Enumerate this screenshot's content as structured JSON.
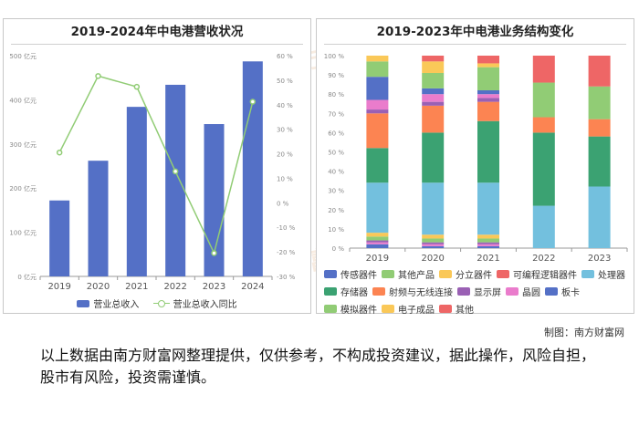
{
  "watermark": "南方财富网",
  "credit": "制图：南方财富网",
  "disclaimer": "以上数据由南方财富网整理提供，仅供参考，不构成投资建议，据此操作，风险自担，股市有风险，投资需谨慎。",
  "colors": {
    "bar": "#5470c6",
    "line": "#91cc75"
  },
  "chart_data": [
    {
      "type": "bar",
      "title": "2019-2024年中电港营收状况",
      "categories": [
        "2019",
        "2020",
        "2021",
        "2022",
        "2023",
        "2024"
      ],
      "series": [
        {
          "name": "营业总收入",
          "type": "bar",
          "axis": "left",
          "values": [
            172,
            262,
            384,
            434,
            345,
            487
          ]
        },
        {
          "name": "营业总收入同比",
          "type": "line",
          "axis": "right",
          "values": [
            20.5,
            51.7,
            47.3,
            12.8,
            -20.5,
            41.2
          ]
        }
      ],
      "ylim_left": [
        0,
        500
      ],
      "yticks_left": [
        "0 亿元",
        "100 亿元",
        "200 亿元",
        "300 亿元",
        "400 亿元",
        "500 亿元"
      ],
      "ylim_right": [
        -30,
        60
      ],
      "yticks_right": [
        "-30 %",
        "-20 %",
        "-10 %",
        "0 %",
        "10 %",
        "20 %",
        "30 %",
        "40 %",
        "50 %",
        "60 %"
      ],
      "legend": "bottom",
      "grid": false
    },
    {
      "type": "bar",
      "stacked": true,
      "title": "2019-2023年中电港业务结构变化",
      "categories": [
        "2019",
        "2020",
        "2021",
        "2022",
        "2023"
      ],
      "ylim": [
        0,
        100
      ],
      "yticks": [
        "0 %",
        "10 %",
        "20 %",
        "30 %",
        "40 %",
        "50 %",
        "60 %",
        "70 %",
        "80 %",
        "90 %",
        "100 %"
      ],
      "legend": "bottom",
      "series": [
        {
          "name": "板卡",
          "color": "#5470c6",
          "values": [
            2,
            1,
            1,
            0,
            0
          ]
        },
        {
          "name": "晶圆",
          "color": "#ea7ccc",
          "values": [
            1,
            1,
            1,
            0,
            0
          ]
        },
        {
          "name": "显示屏",
          "color": "#9a60b4",
          "values": [
            1,
            1,
            1,
            0,
            0
          ]
        },
        {
          "name": "其他产品",
          "color": "#91cc75",
          "values": [
            2,
            2,
            2,
            0,
            0
          ]
        },
        {
          "name": "分立器件",
          "color": "#fac858",
          "values": [
            2,
            2,
            2,
            0,
            0
          ]
        },
        {
          "name": "处理器",
          "color": "#73c0de",
          "values": [
            26,
            27,
            27,
            22,
            32
          ]
        },
        {
          "name": "存储器",
          "color": "#3ba272",
          "values": [
            18,
            26,
            32,
            38,
            26
          ]
        },
        {
          "name": "射频与无线连接",
          "color": "#fc8452",
          "values": [
            18,
            14,
            10,
            8,
            9
          ]
        },
        {
          "name": "显示屏",
          "color": "#9a60b4",
          "values": [
            2,
            2,
            2,
            0,
            0
          ]
        },
        {
          "name": "晶圆",
          "color": "#ea7ccc",
          "values": [
            5,
            4,
            2,
            0,
            0
          ]
        },
        {
          "name": "传感器件",
          "color": "#5470c6",
          "values": [
            12,
            3,
            2,
            0,
            0
          ]
        },
        {
          "name": "模拟器件",
          "color": "#91cc75",
          "values": [
            8,
            8,
            12,
            18,
            17
          ]
        },
        {
          "name": "电子成品",
          "color": "#fac858",
          "values": [
            3,
            6,
            2,
            0,
            0
          ]
        },
        {
          "name": "其他",
          "color": "#ee6666",
          "values": [
            0,
            3,
            4,
            14,
            16
          ]
        }
      ],
      "legend_entries": [
        {
          "name": "传感器件",
          "color": "#5470c6"
        },
        {
          "name": "其他产品",
          "color": "#91cc75"
        },
        {
          "name": "分立器件",
          "color": "#fac858"
        },
        {
          "name": "可编程逻辑器件",
          "color": "#ee6666"
        },
        {
          "name": "处理器",
          "color": "#73c0de"
        },
        {
          "name": "存储器",
          "color": "#3ba272"
        },
        {
          "name": "射频与无线连接",
          "color": "#fc8452"
        },
        {
          "name": "显示屏",
          "color": "#9a60b4"
        },
        {
          "name": "晶圆",
          "color": "#ea7ccc"
        },
        {
          "name": "板卡",
          "color": "#5470c6"
        },
        {
          "name": "模拟器件",
          "color": "#91cc75"
        },
        {
          "name": "电子成品",
          "color": "#fac858"
        },
        {
          "name": "其他",
          "color": "#ee6666"
        }
      ]
    }
  ]
}
